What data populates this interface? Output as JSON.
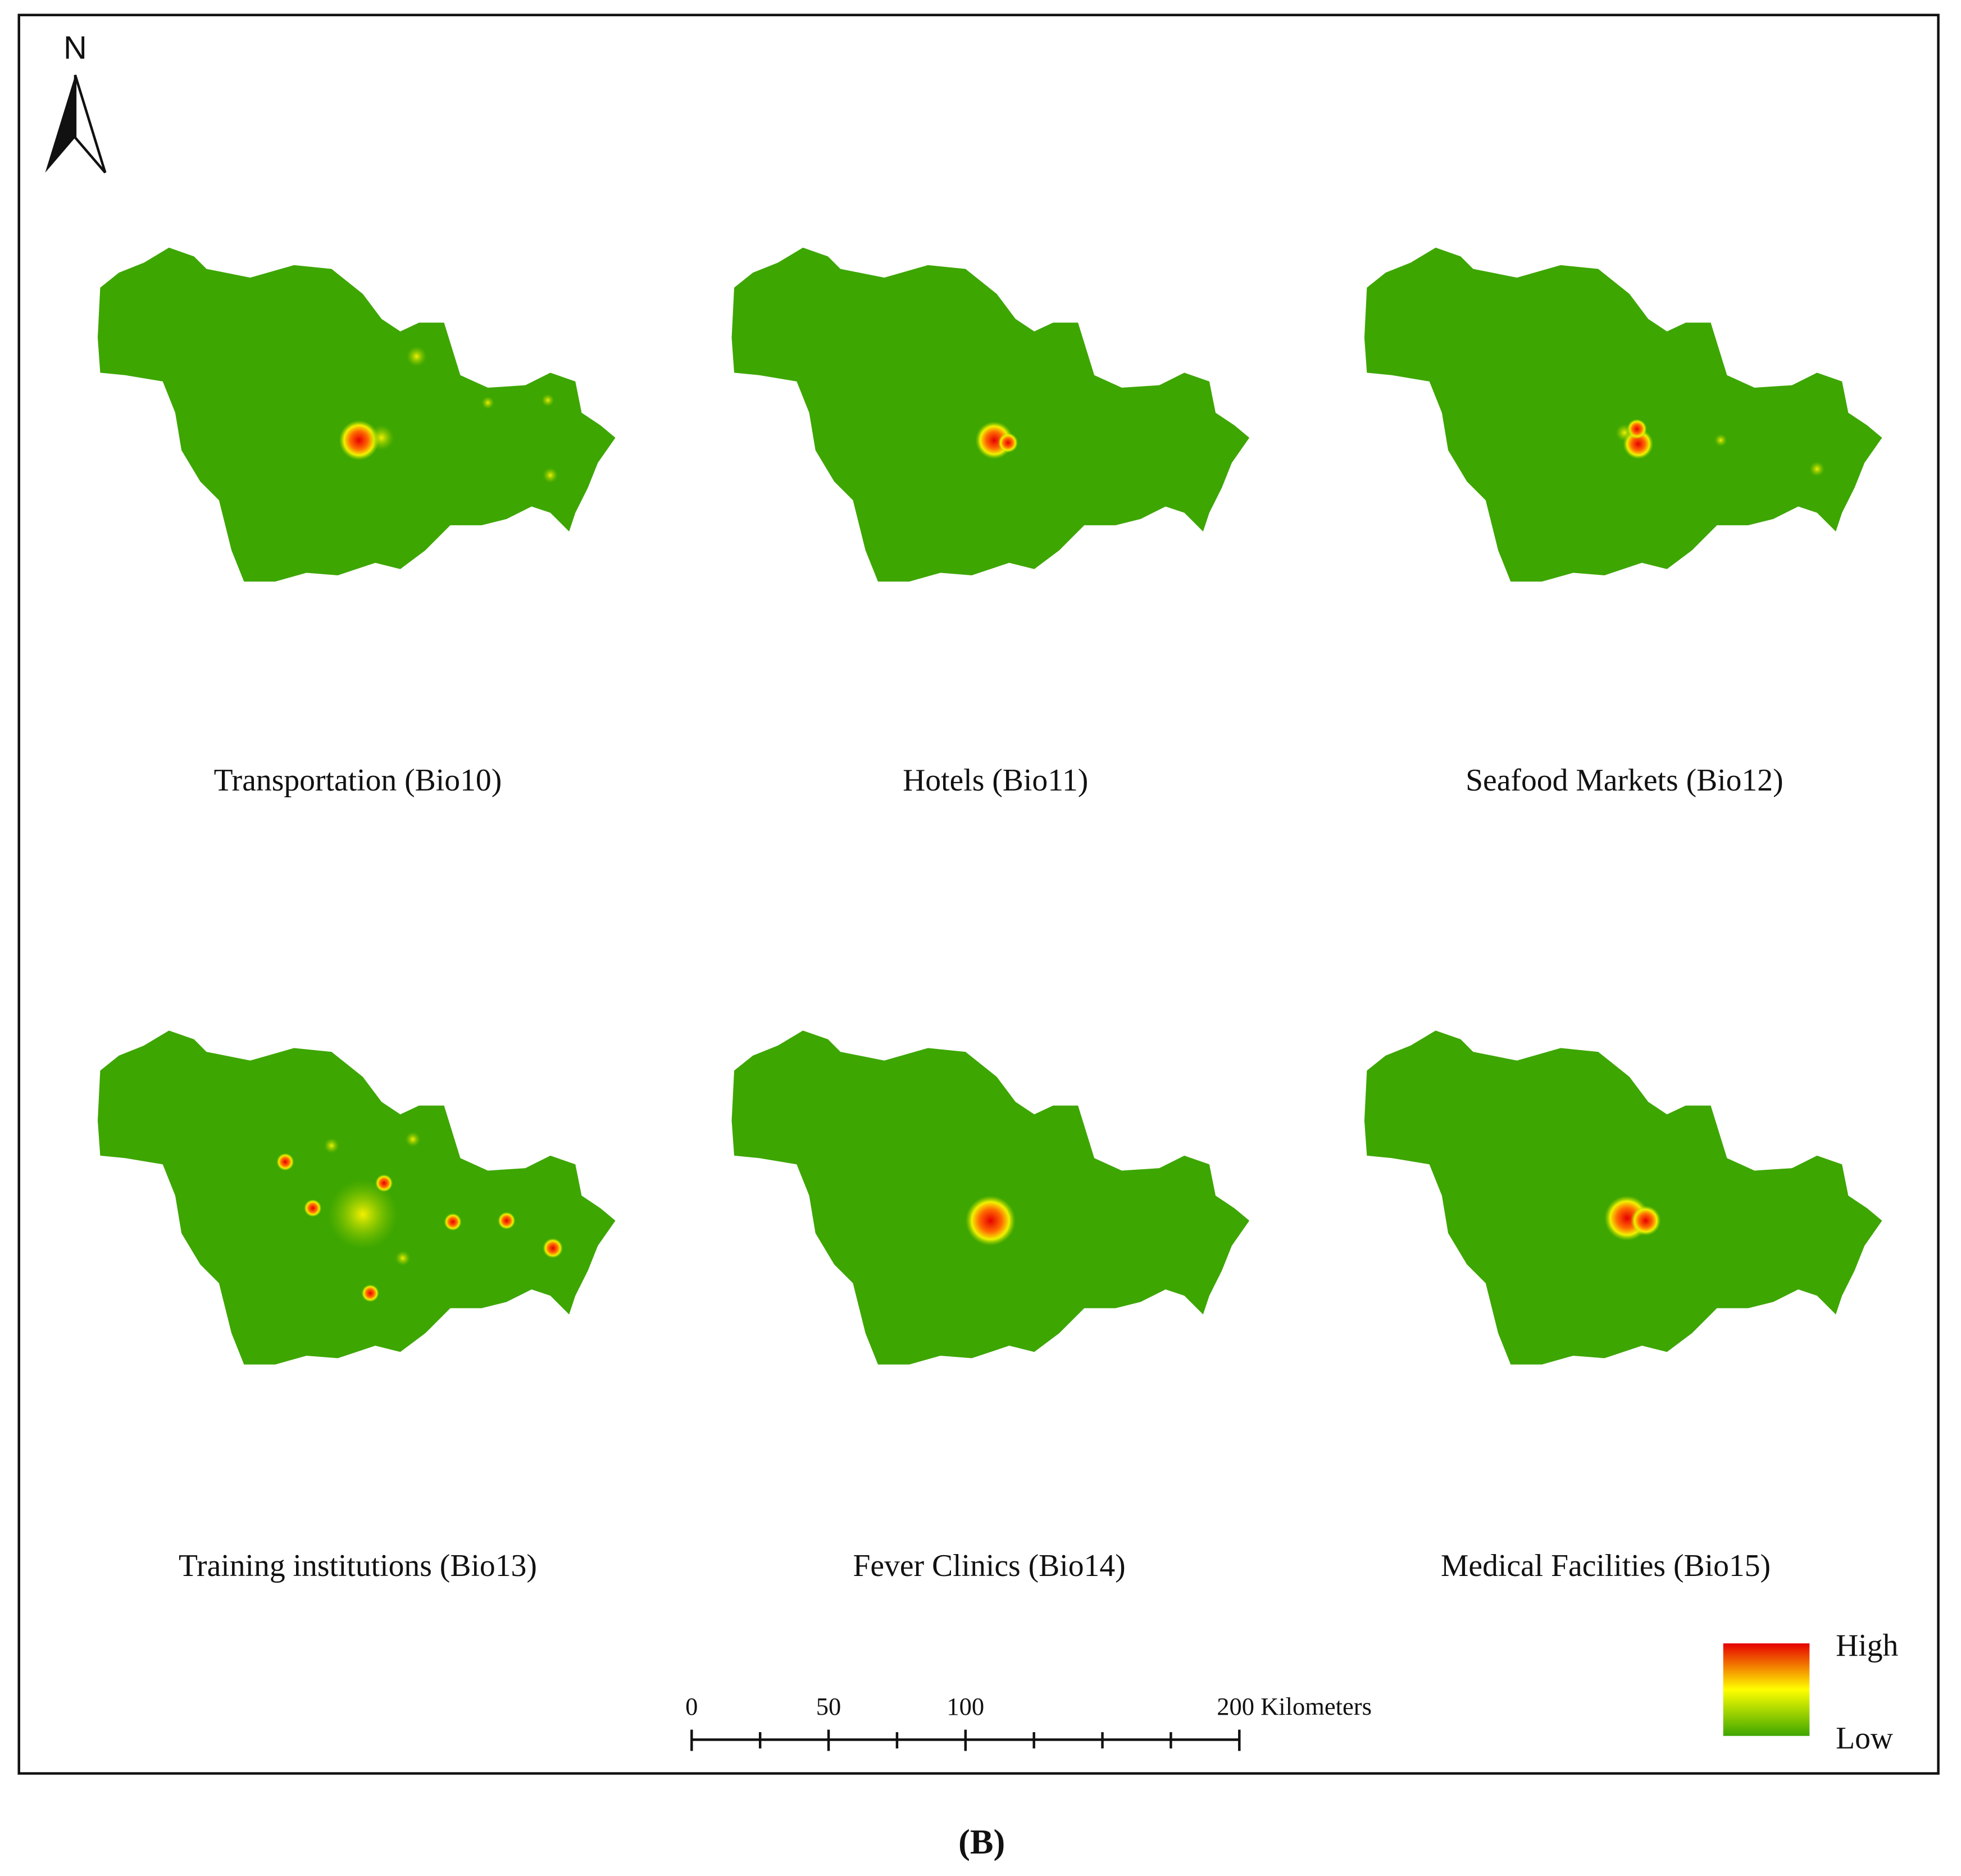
{
  "north_arrow": {
    "label": "N"
  },
  "panels": [
    {
      "title": "Transportation (Bio10)"
    },
    {
      "title": "Hotels (Bio11)"
    },
    {
      "title": "Seafood Markets (Bio12)"
    },
    {
      "title": "Training institutions (Bio13)"
    },
    {
      "title": "Fever Clinics (Bio14)"
    },
    {
      "title": "Medical Facilities (Bio15)"
    }
  ],
  "scale_bar": {
    "xlim": [
      0,
      200
    ],
    "ticks": [
      0,
      50,
      100,
      {
        "value": 200,
        "label": "200 Kilometers"
      }
    ]
  },
  "legend": {
    "high": "High",
    "low": "Low"
  },
  "caption": "(B)"
}
